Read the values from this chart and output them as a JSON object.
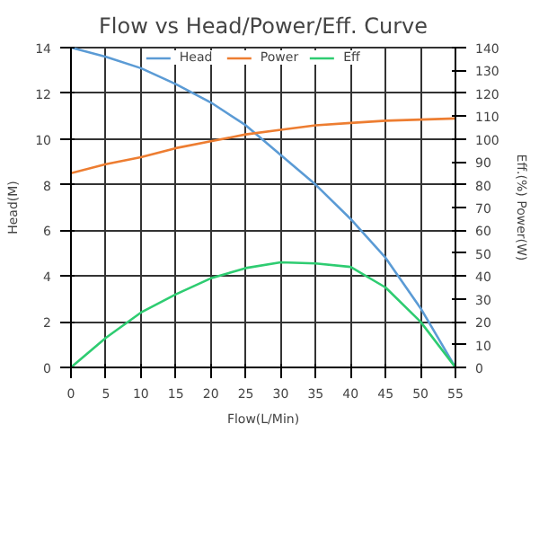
{
  "chart_data": {
    "type": "line",
    "title": "Flow vs Head/Power/Eff. Curve",
    "xlabel": "Flow(L/Min)",
    "ylabel": "Head(M)",
    "y2label": "Eff.(%) Power(W)",
    "x": [
      0,
      5,
      10,
      15,
      20,
      25,
      30,
      35,
      40,
      45,
      50,
      55
    ],
    "series": [
      {
        "name": "Head",
        "color": "#5b9bd5",
        "values": [
          14,
          13.6,
          13.1,
          12.4,
          11.6,
          10.6,
          9.3,
          8.0,
          6.5,
          4.8,
          2.6,
          0
        ]
      },
      {
        "name": "Power",
        "color": "#ed7d31",
        "axis": "y2",
        "values": [
          85,
          89,
          92,
          96,
          99,
          102,
          104,
          106,
          107,
          108,
          108.5,
          109
        ]
      },
      {
        "name": "Eff",
        "color": "#2ecc71",
        "axis": "y2",
        "values": [
          0,
          13,
          24,
          32,
          39,
          43.5,
          46,
          45.5,
          44,
          35,
          20,
          0
        ]
      }
    ],
    "xlim": [
      0,
      55
    ],
    "xticks": [
      0,
      5,
      10,
      15,
      20,
      25,
      30,
      35,
      40,
      45,
      50,
      55
    ],
    "ylim": [
      0,
      14
    ],
    "yticks": [
      0,
      2,
      4,
      6,
      8,
      10,
      12,
      14
    ],
    "y2lim": [
      0,
      140
    ],
    "y2ticks": [
      0,
      10,
      20,
      30,
      40,
      50,
      60,
      70,
      80,
      90,
      100,
      110,
      120,
      130,
      140
    ],
    "grid": true,
    "legend": "top",
    "marker": "none",
    "line_style": "solid"
  }
}
